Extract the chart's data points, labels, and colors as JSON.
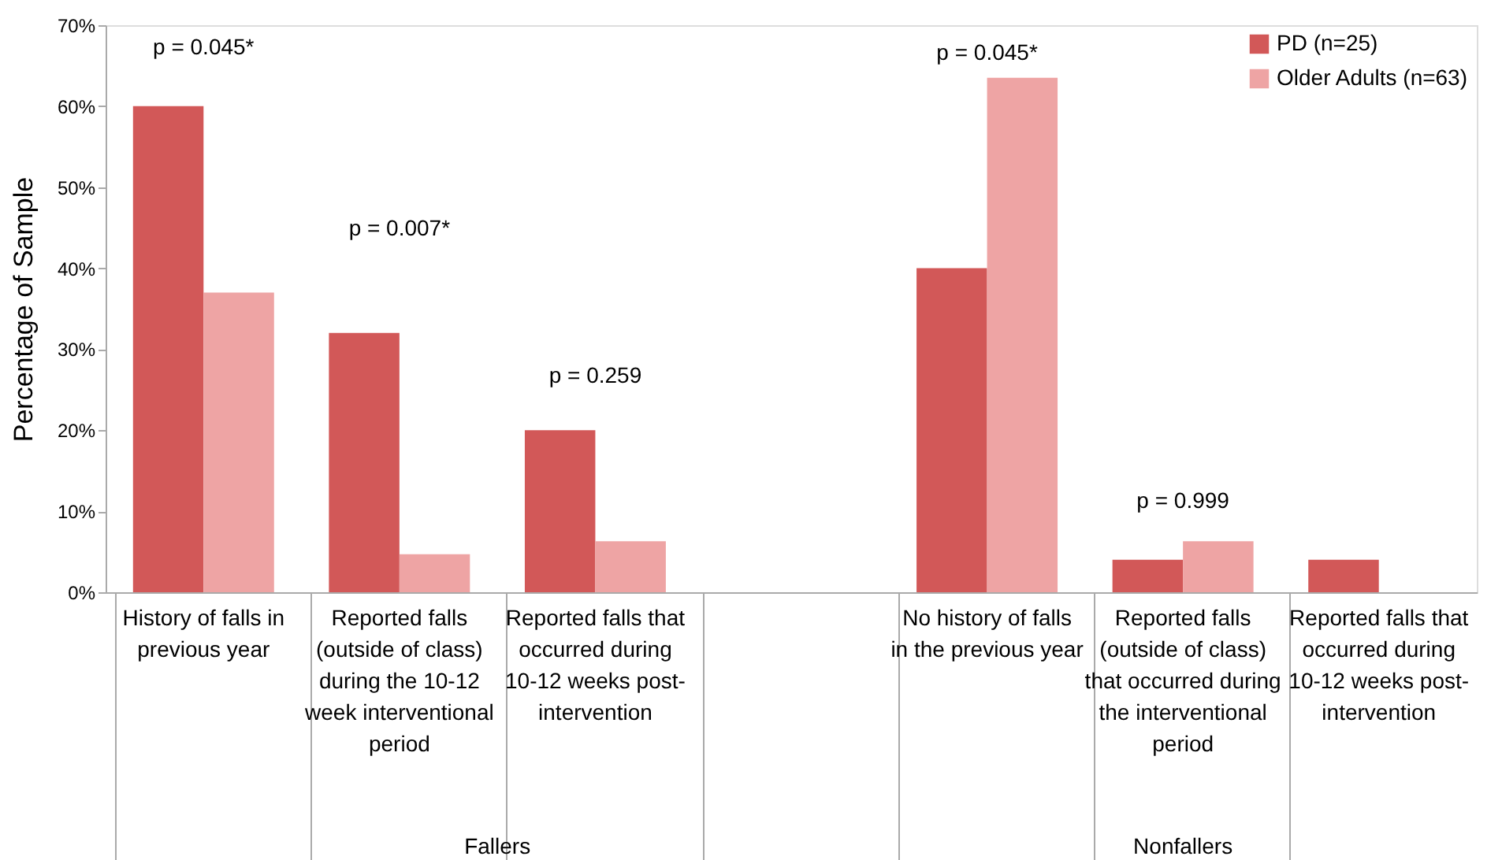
{
  "chart_data": {
    "type": "bar",
    "ylabel": "Percentage of Sample",
    "categories": [
      "History of falls in previous year",
      "Reported falls (outside of class) during the 10-12 week interventional period",
      "Reported falls that occurred during 10-12 weeks post-intervention",
      null,
      "No history of falls in the previous year",
      "Reported falls (outside of class) that occurred during the interventional period",
      "Reported falls that occurred during 10-12 weeks post-intervention"
    ],
    "series": [
      {
        "name": "PD (n=25)",
        "color": "#d25858",
        "values": [
          60,
          32,
          20,
          null,
          40,
          4,
          4
        ]
      },
      {
        "name": "Older Adults (n=63)",
        "color": "#eea4a4",
        "values": [
          37,
          4.7,
          6.3,
          null,
          63.5,
          6.3,
          0
        ]
      }
    ],
    "ylim": [
      0,
      70
    ],
    "yticks": [
      {
        "value": 0,
        "label": "0%"
      },
      {
        "value": 10,
        "label": "10%"
      },
      {
        "value": 20,
        "label": "20%"
      },
      {
        "value": 30,
        "label": "30%"
      },
      {
        "value": 40,
        "label": "40%"
      },
      {
        "value": 50,
        "label": "50%"
      },
      {
        "value": 60,
        "label": "60%"
      },
      {
        "value": 70,
        "label": "70%"
      }
    ],
    "annotations": [
      "p = 0.045*",
      "p = 0.007*",
      "p = 0.259",
      "p = 0.045*",
      "p = 0.999",
      "Fallers",
      "Nonfallers"
    ],
    "grid": false,
    "legend": "top right"
  }
}
